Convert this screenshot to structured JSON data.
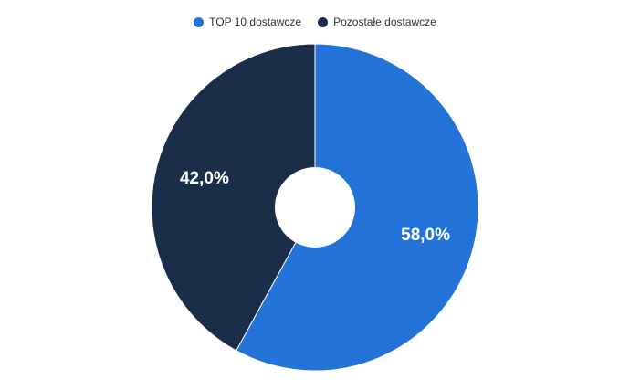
{
  "chart_data": {
    "type": "pie",
    "donut": true,
    "legend_position": "top-center",
    "categories": [
      "TOP 10 dostawcze",
      "Pozostałe dostawcze"
    ],
    "values": [
      58.0,
      42.0
    ],
    "labels": [
      "58,0%",
      "42,0%"
    ],
    "colors": [
      "#2473d8",
      "#1b2e49"
    ]
  }
}
